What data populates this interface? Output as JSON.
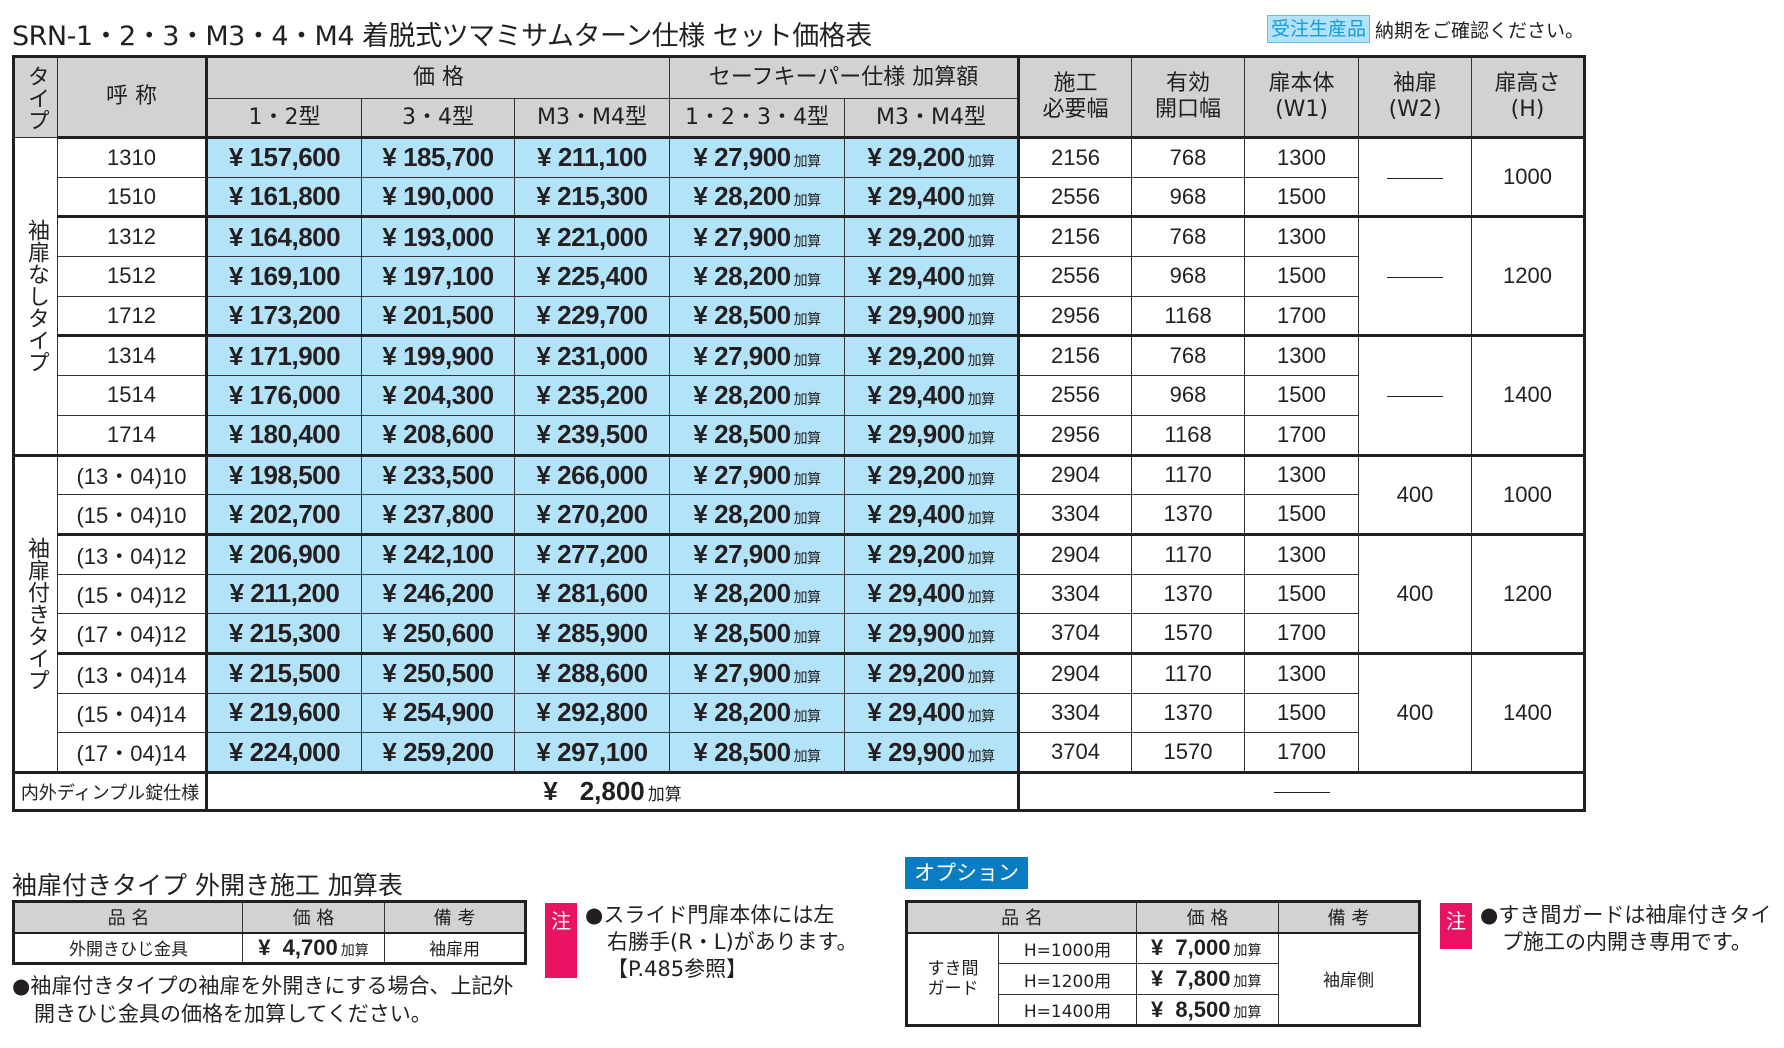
{
  "header": {
    "title": "SRN-1・2・3・M3・4・M4 着脱式ツマミサムターン仕様 セット価格表",
    "badge": "受注生産品",
    "badge_note": "納期をご確認ください。"
  },
  "main_table": {
    "headers": {
      "type": "タイプ",
      "name": "呼 称",
      "price_group": "価 格",
      "safekeeper_group": "セーフキーパー仕様 加算額",
      "price_cols": [
        "1・2型",
        "3・4型",
        "M3・M4型"
      ],
      "sk_cols": [
        "1・2・3・4型",
        "M3・M4型"
      ],
      "install_width": [
        "施工",
        "必要幅"
      ],
      "opening_width": [
        "有効",
        "開口幅"
      ],
      "door_body": [
        "扉本体",
        "(W1)"
      ],
      "side_door": [
        "袖扉",
        "(W2)"
      ],
      "door_height": [
        "扉高さ",
        "(H)"
      ]
    },
    "addon_suffix": "加算",
    "groups": [
      {
        "type": "袖扉なしタイプ",
        "subgroups": [
          {
            "w2": "—",
            "h": "1000",
            "rows": [
              {
                "name": "1310",
                "p12": "¥ 157,600",
                "p34": "¥ 185,700",
                "pm": "¥ 211,100",
                "sk1234": "¥ 27,900",
                "skm": "¥ 29,200",
                "install": "2156",
                "opening": "768",
                "w1": "1300"
              },
              {
                "name": "1510",
                "p12": "¥ 161,800",
                "p34": "¥ 190,000",
                "pm": "¥ 215,300",
                "sk1234": "¥ 28,200",
                "skm": "¥ 29,400",
                "install": "2556",
                "opening": "968",
                "w1": "1500"
              }
            ]
          },
          {
            "w2": "—",
            "h": "1200",
            "rows": [
              {
                "name": "1312",
                "p12": "¥ 164,800",
                "p34": "¥ 193,000",
                "pm": "¥ 221,000",
                "sk1234": "¥ 27,900",
                "skm": "¥ 29,200",
                "install": "2156",
                "opening": "768",
                "w1": "1300"
              },
              {
                "name": "1512",
                "p12": "¥ 169,100",
                "p34": "¥ 197,100",
                "pm": "¥ 225,400",
                "sk1234": "¥ 28,200",
                "skm": "¥ 29,400",
                "install": "2556",
                "opening": "968",
                "w1": "1500"
              },
              {
                "name": "1712",
                "p12": "¥ 173,200",
                "p34": "¥ 201,500",
                "pm": "¥ 229,700",
                "sk1234": "¥ 28,500",
                "skm": "¥ 29,900",
                "install": "2956",
                "opening": "1168",
                "w1": "1700"
              }
            ]
          },
          {
            "w2": "—",
            "h": "1400",
            "rows": [
              {
                "name": "1314",
                "p12": "¥ 171,900",
                "p34": "¥ 199,900",
                "pm": "¥ 231,000",
                "sk1234": "¥ 27,900",
                "skm": "¥ 29,200",
                "install": "2156",
                "opening": "768",
                "w1": "1300"
              },
              {
                "name": "1514",
                "p12": "¥ 176,000",
                "p34": "¥ 204,300",
                "pm": "¥ 235,200",
                "sk1234": "¥ 28,200",
                "skm": "¥ 29,400",
                "install": "2556",
                "opening": "968",
                "w1": "1500"
              },
              {
                "name": "1714",
                "p12": "¥ 180,400",
                "p34": "¥ 208,600",
                "pm": "¥ 239,500",
                "sk1234": "¥ 28,500",
                "skm": "¥ 29,900",
                "install": "2956",
                "opening": "1168",
                "w1": "1700"
              }
            ]
          }
        ]
      },
      {
        "type": "袖扉付きタイプ",
        "subgroups": [
          {
            "w2": "400",
            "h": "1000",
            "rows": [
              {
                "name": "(13・04)10",
                "p12": "¥ 198,500",
                "p34": "¥ 233,500",
                "pm": "¥ 266,000",
                "sk1234": "¥ 27,900",
                "skm": "¥ 29,200",
                "install": "2904",
                "opening": "1170",
                "w1": "1300"
              },
              {
                "name": "(15・04)10",
                "p12": "¥ 202,700",
                "p34": "¥ 237,800",
                "pm": "¥ 270,200",
                "sk1234": "¥ 28,200",
                "skm": "¥ 29,400",
                "install": "3304",
                "opening": "1370",
                "w1": "1500"
              }
            ]
          },
          {
            "w2": "400",
            "h": "1200",
            "rows": [
              {
                "name": "(13・04)12",
                "p12": "¥ 206,900",
                "p34": "¥ 242,100",
                "pm": "¥ 277,200",
                "sk1234": "¥ 27,900",
                "skm": "¥ 29,200",
                "install": "2904",
                "opening": "1170",
                "w1": "1300"
              },
              {
                "name": "(15・04)12",
                "p12": "¥ 211,200",
                "p34": "¥ 246,200",
                "pm": "¥ 281,600",
                "sk1234": "¥ 28,200",
                "skm": "¥ 29,400",
                "install": "3304",
                "opening": "1370",
                "w1": "1500"
              },
              {
                "name": "(17・04)12",
                "p12": "¥ 215,300",
                "p34": "¥ 250,600",
                "pm": "¥ 285,900",
                "sk1234": "¥ 28,500",
                "skm": "¥ 29,900",
                "install": "3704",
                "opening": "1570",
                "w1": "1700"
              }
            ]
          },
          {
            "w2": "400",
            "h": "1400",
            "rows": [
              {
                "name": "(13・04)14",
                "p12": "¥ 215,500",
                "p34": "¥ 250,500",
                "pm": "¥ 288,600",
                "sk1234": "¥ 27,900",
                "skm": "¥ 29,200",
                "install": "2904",
                "opening": "1170",
                "w1": "1300"
              },
              {
                "name": "(15・04)14",
                "p12": "¥ 219,600",
                "p34": "¥ 254,900",
                "pm": "¥ 292,800",
                "sk1234": "¥ 28,200",
                "skm": "¥ 29,400",
                "install": "3304",
                "opening": "1370",
                "w1": "1500"
              },
              {
                "name": "(17・04)14",
                "p12": "¥ 224,000",
                "p34": "¥ 259,200",
                "pm": "¥ 297,100",
                "sk1234": "¥ 28,500",
                "skm": "¥ 29,900",
                "install": "3704",
                "opening": "1570",
                "w1": "1700"
              }
            ]
          }
        ]
      }
    ],
    "dimple": {
      "label": "内外ディンプル錠仕様",
      "yen": "¥",
      "price": "2,800",
      "suffix": "加算"
    }
  },
  "outward_table": {
    "title": "袖扉付きタイプ 外開き施工 加算表",
    "headers": [
      "品 名",
      "価 格",
      "備 考"
    ],
    "row": {
      "item": "外開きひじ金具",
      "yen": "¥",
      "price": "4,700",
      "suffix": "加算",
      "remark": "袖扉用"
    },
    "note_line1": "●袖扉付きタイプの袖扉を外開きにする場合、上記外",
    "note_line2": "開きひじ金具の価格を加算してください。"
  },
  "note_slide": {
    "mark": "注",
    "line1": "●スライド門扉本体には左",
    "line2": "右勝手(R・L)があります。",
    "line3": "【P.485参照】"
  },
  "option": {
    "badge": "オプション",
    "headers": [
      "品 名",
      "価 格",
      "備 考"
    ],
    "group_line1": "すき間",
    "group_line2": "ガード",
    "remark": "袖扉側",
    "suffix": "加算",
    "rows": [
      {
        "size": "H=1000用",
        "yen": "¥",
        "price": "7,000"
      },
      {
        "size": "H=1200用",
        "yen": "¥",
        "price": "7,800"
      },
      {
        "size": "H=1400用",
        "yen": "¥",
        "price": "8,500"
      }
    ]
  },
  "note_gap": {
    "mark": "注",
    "line1": "●すき間ガードは袖扉付きタイ",
    "line2": "プ施工の内開き専用です。"
  },
  "colors": {
    "price_cell_blue": "#b3e3f8",
    "header_gray": "#d1d2d4",
    "note_pink": "#ea1263",
    "option_blue": "#0a7cc1"
  }
}
